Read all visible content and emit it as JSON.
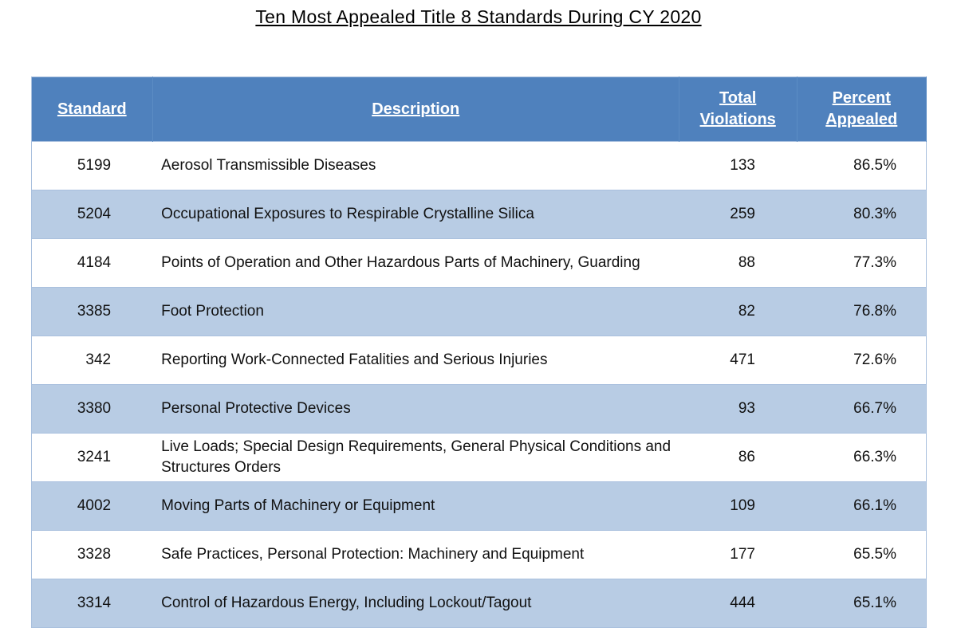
{
  "title": "Ten Most Appealed Title 8 Standards During CY 2020",
  "headers": {
    "standard": "Standard",
    "description": "Description",
    "total_line1": "Total",
    "total_line2": "Violations",
    "percent_line1": "Percent",
    "percent_line2": "Appealed"
  },
  "colors": {
    "header": "#4f81bd",
    "shaded_row": "#b8cce4"
  },
  "rows": [
    {
      "standard": "5199",
      "description": "Aerosol Transmissible Diseases",
      "total": "133",
      "percent": "86.5%"
    },
    {
      "standard": "5204",
      "description": "Occupational Exposures to Respirable Crystalline Silica",
      "total": "259",
      "percent": "80.3%"
    },
    {
      "standard": "4184",
      "description": "Points of Operation and Other Hazardous Parts of Machinery, Guarding",
      "total": "88",
      "percent": "77.3%"
    },
    {
      "standard": "3385",
      "description": "Foot Protection",
      "total": "82",
      "percent": "76.8%"
    },
    {
      "standard": "342",
      "description": "Reporting Work-Connected Fatalities and Serious Injuries",
      "total": "471",
      "percent": "72.6%"
    },
    {
      "standard": "3380",
      "description": "Personal Protective Devices",
      "total": "93",
      "percent": "66.7%"
    },
    {
      "standard": "3241",
      "description": "Live Loads; Special Design Requirements, General Physical Conditions and Structures Orders",
      "total": "86",
      "percent": "66.3%"
    },
    {
      "standard": "4002",
      "description": "Moving Parts of Machinery or Equipment",
      "total": "109",
      "percent": "66.1%"
    },
    {
      "standard": "3328",
      "description": "Safe Practices, Personal Protection: Machinery and Equipment",
      "total": "177",
      "percent": "65.5%"
    },
    {
      "standard": "3314",
      "description": "Control of Hazardous Energy, Including Lockout/Tagout",
      "total": "444",
      "percent": "65.1%"
    }
  ]
}
